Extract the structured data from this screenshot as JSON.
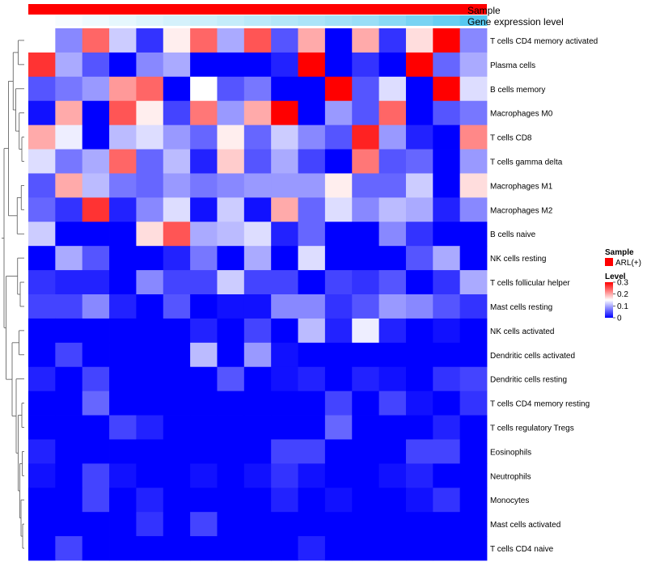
{
  "chart_data": {
    "type": "heatmap",
    "annotation_rows": [
      {
        "name": "Sample",
        "color": "#ff0000"
      },
      {
        "name": "Gene expression level",
        "gradient": [
          "#ffffff",
          "#56c8f0"
        ]
      }
    ],
    "rows": [
      "T cells CD4 memory activated",
      "Plasma cells",
      "B cells memory",
      "Macrophages M0",
      "T cells CD8",
      "T cells gamma delta",
      "Macrophages M1",
      "Macrophages M2",
      "B cells naive",
      "NK cells resting",
      "T cells follicular helper",
      "Mast cells resting",
      "NK cells activated",
      "Dendritic cells activated",
      "Dendritic cells resting",
      "T cells CD4 memory resting",
      "T cells regulatory  Tregs",
      "Eosinophils",
      "Neutrophils",
      "Monocytes",
      "Mast cells activated",
      "T cells CD4 naive"
    ],
    "values": [
      [
        0.15,
        0.08,
        0.24,
        0.12,
        0.03,
        0.16,
        0.24,
        0.1,
        0.25,
        0.05,
        0.2,
        0.0,
        0.2,
        0.03,
        0.17,
        0.3,
        0.08
      ],
      [
        0.27,
        0.1,
        0.05,
        0.0,
        0.08,
        0.1,
        0.0,
        0.0,
        0.0,
        0.02,
        0.32,
        0.0,
        0.03,
        0.0,
        0.32,
        0.06,
        0.1
      ],
      [
        0.05,
        0.07,
        0.09,
        0.21,
        0.24,
        0.0,
        0.15,
        0.05,
        0.07,
        0.0,
        0.0,
        0.32,
        0.05,
        0.13,
        0.0,
        0.32,
        0.13
      ],
      [
        0.01,
        0.2,
        0.0,
        0.25,
        0.16,
        0.04,
        0.23,
        0.09,
        0.2,
        0.32,
        0.0,
        0.09,
        0.05,
        0.24,
        0.0,
        0.05,
        0.07
      ],
      [
        0.2,
        0.14,
        0.0,
        0.11,
        0.13,
        0.09,
        0.06,
        0.16,
        0.06,
        0.12,
        0.08,
        0.05,
        0.28,
        0.09,
        0.02,
        0.0,
        0.22
      ],
      [
        0.13,
        0.07,
        0.1,
        0.24,
        0.06,
        0.11,
        0.02,
        0.18,
        0.05,
        0.1,
        0.04,
        0.0,
        0.23,
        0.05,
        0.06,
        0.0,
        0.09
      ],
      [
        0.05,
        0.2,
        0.11,
        0.07,
        0.06,
        0.09,
        0.07,
        0.08,
        0.09,
        0.09,
        0.09,
        0.16,
        0.06,
        0.06,
        0.12,
        0.0,
        0.17
      ],
      [
        0.06,
        0.03,
        0.27,
        0.02,
        0.08,
        0.13,
        0.01,
        0.12,
        0.01,
        0.2,
        0.06,
        0.13,
        0.08,
        0.11,
        0.1,
        0.02,
        0.08
      ],
      [
        0.12,
        0.0,
        0.0,
        0.0,
        0.17,
        0.25,
        0.1,
        0.11,
        0.13,
        0.02,
        0.06,
        0.0,
        0.0,
        0.08,
        0.03,
        0.0,
        0.0
      ],
      [
        0.0,
        0.1,
        0.05,
        0.0,
        0.0,
        0.02,
        0.07,
        0.0,
        0.1,
        0.0,
        0.13,
        0.0,
        0.0,
        0.0,
        0.05,
        0.1,
        0.0
      ],
      [
        0.03,
        0.02,
        0.02,
        0.0,
        0.08,
        0.04,
        0.04,
        0.12,
        0.04,
        0.04,
        0.0,
        0.04,
        0.03,
        0.05,
        0.0,
        0.03,
        0.1
      ],
      [
        0.04,
        0.04,
        0.08,
        0.02,
        0.0,
        0.05,
        0.0,
        0.01,
        0.01,
        0.08,
        0.08,
        0.03,
        0.05,
        0.09,
        0.08,
        0.05,
        0.03
      ],
      [
        0.0,
        0.0,
        0.0,
        0.0,
        0.0,
        0.0,
        0.02,
        0.0,
        0.04,
        0.0,
        0.11,
        0.02,
        0.14,
        0.02,
        0.0,
        0.01,
        0.0
      ],
      [
        0.0,
        0.04,
        0.0,
        0.0,
        0.0,
        0.0,
        0.11,
        0.0,
        0.09,
        0.01,
        0.0,
        0.0,
        0.0,
        0.0,
        0.0,
        0.0,
        0.0
      ],
      [
        0.02,
        0.0,
        0.04,
        0.0,
        0.0,
        0.0,
        0.0,
        0.05,
        0.0,
        0.01,
        0.02,
        0.0,
        0.02,
        0.01,
        0.0,
        0.03,
        0.04
      ],
      [
        0.0,
        0.0,
        0.06,
        0.0,
        0.0,
        0.0,
        0.0,
        0.0,
        0.0,
        0.0,
        0.0,
        0.04,
        0.0,
        0.04,
        0.01,
        0.0,
        0.03
      ],
      [
        0.0,
        0.0,
        0.0,
        0.04,
        0.02,
        0.0,
        0.0,
        0.0,
        0.0,
        0.0,
        0.0,
        0.06,
        0.0,
        0.0,
        0.0,
        0.02,
        0.0
      ],
      [
        0.02,
        0.0,
        0.0,
        0.0,
        0.0,
        0.0,
        0.0,
        0.0,
        0.0,
        0.04,
        0.04,
        0.0,
        0.0,
        0.0,
        0.04,
        0.04,
        0.0
      ],
      [
        0.01,
        0.0,
        0.04,
        0.01,
        0.0,
        0.0,
        0.01,
        0.0,
        0.01,
        0.03,
        0.01,
        0.0,
        0.0,
        0.01,
        0.02,
        0.0,
        0.0
      ],
      [
        0.0,
        0.0,
        0.04,
        0.0,
        0.02,
        0.0,
        0.0,
        0.0,
        0.0,
        0.02,
        0.0,
        0.01,
        0.0,
        0.0,
        0.01,
        0.03,
        0.0
      ],
      [
        0.0,
        0.0,
        0.0,
        0.0,
        0.03,
        0.0,
        0.04,
        0.0,
        0.0,
        0.0,
        0.0,
        0.0,
        0.0,
        0.0,
        0.0,
        0.0,
        0.0
      ],
      [
        0.0,
        0.04,
        0.0,
        0.0,
        0.0,
        0.0,
        0.0,
        0.0,
        0.0,
        0.0,
        0.02,
        0.0,
        0.0,
        0.0,
        0.0,
        0.0,
        0.0
      ]
    ],
    "gene_expression_level": [
      0.0,
      0.05,
      0.1,
      0.15,
      0.2,
      0.25,
      0.3,
      0.35,
      0.4,
      0.45,
      0.5,
      0.55,
      0.6,
      0.7,
      0.8,
      0.9,
      1.0
    ],
    "color_scale": {
      "min": 0,
      "mid": 0.15,
      "max": 0.3,
      "low": "#0000ff",
      "mid_color": "#ffffff",
      "high": "#ff0000"
    },
    "dendrogram_side": "left",
    "legend": {
      "position": "right",
      "sample_title": "Sample",
      "sample_item": "ARL(+)",
      "sample_color": "#ff0000",
      "level_title": "Level",
      "level_ticks": [
        {
          "label": "0.3",
          "value": 0.3
        },
        {
          "label": "0.2",
          "value": 0.2
        },
        {
          "label": "0.1",
          "value": 0.1
        },
        {
          "label": "0",
          "value": 0
        }
      ]
    }
  }
}
